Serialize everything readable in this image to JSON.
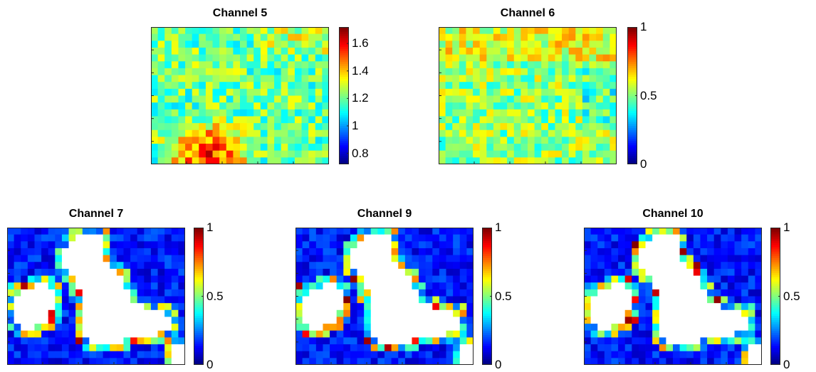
{
  "chart_data": [
    {
      "id": "c5",
      "type": "heatmap",
      "title": "Channel 5",
      "colormap": "jet",
      "clim": [
        0.72,
        1.72
      ],
      "colorbar_ticks": [
        "0.8",
        "1",
        "1.2",
        "1.4",
        "1.6"
      ],
      "colorbar_tick_values": [
        0.8,
        1.0,
        1.2,
        1.4,
        1.6
      ],
      "grid_size": [
        26,
        20
      ],
      "pattern": "uniform_high",
      "has_land_mask": false
    },
    {
      "id": "c6",
      "type": "heatmap",
      "title": "Channel 6",
      "colormap": "jet",
      "clim": [
        0,
        1
      ],
      "colorbar_ticks": [
        "0",
        "0.5",
        "1"
      ],
      "colorbar_tick_values": [
        0,
        0.5,
        1
      ],
      "grid_size": [
        26,
        20
      ],
      "pattern": "uniform_mid",
      "has_land_mask": false
    },
    {
      "id": "c7",
      "type": "heatmap",
      "title": "Channel 7",
      "colormap": "jet",
      "clim": [
        0,
        1
      ],
      "colorbar_ticks": [
        "0",
        "0.5",
        "1"
      ],
      "colorbar_tick_values": [
        0,
        0.5,
        1
      ],
      "grid_size": [
        26,
        20
      ],
      "pattern": "land_mask",
      "has_land_mask": true
    },
    {
      "id": "c9",
      "type": "heatmap",
      "title": "Channel 9",
      "colormap": "jet",
      "clim": [
        0,
        1
      ],
      "colorbar_ticks": [
        "0",
        "0.5",
        "1"
      ],
      "colorbar_tick_values": [
        0,
        0.5,
        1
      ],
      "grid_size": [
        26,
        20
      ],
      "pattern": "land_mask",
      "has_land_mask": true
    },
    {
      "id": "c10",
      "type": "heatmap",
      "title": "Channel 10",
      "colormap": "jet",
      "clim": [
        0,
        1
      ],
      "colorbar_ticks": [
        "0",
        "0.5",
        "1"
      ],
      "colorbar_tick_values": [
        0,
        0.5,
        1
      ],
      "grid_size": [
        26,
        20
      ],
      "pattern": "land_mask",
      "has_land_mask": true
    }
  ]
}
